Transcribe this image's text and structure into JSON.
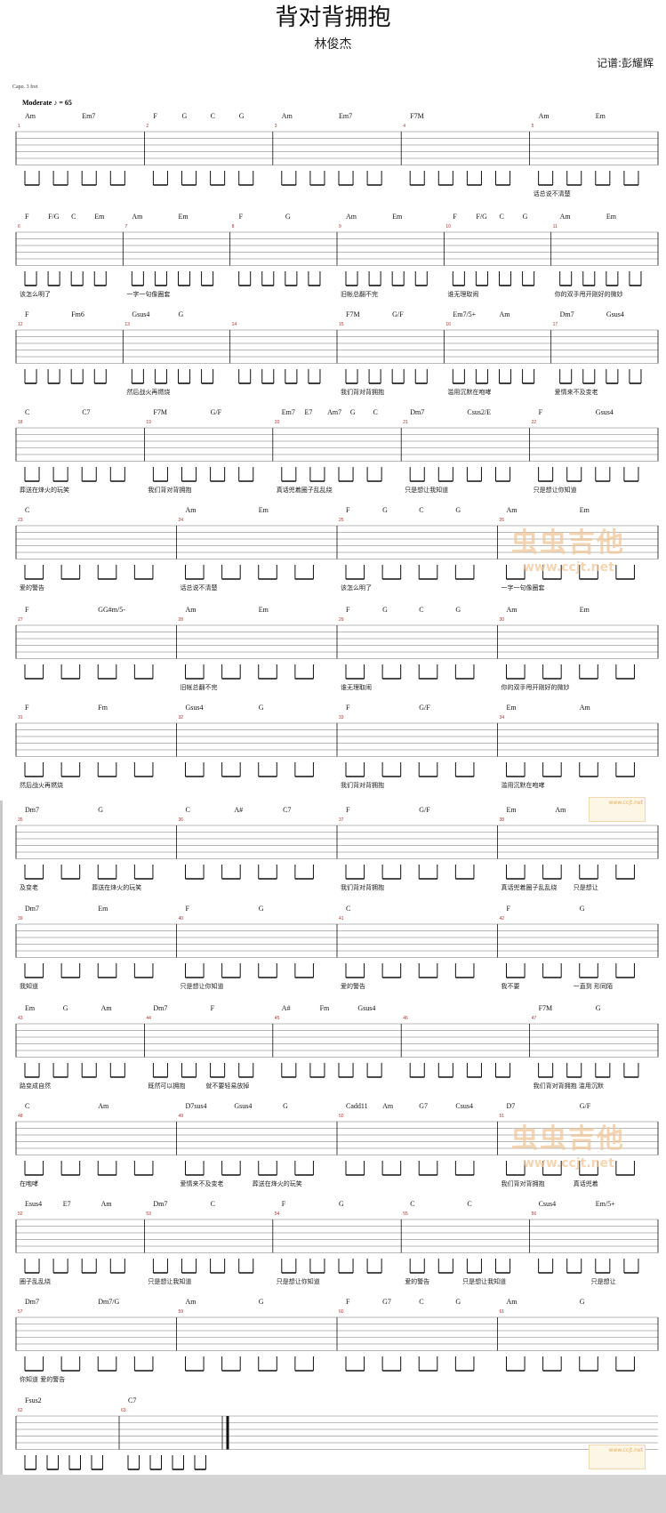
{
  "header": {
    "title": "背对背拥抱",
    "artist": "林俊杰",
    "arranger": "记谱:彭耀辉",
    "capo": "Capo. 3 fret",
    "tempo": "Moderate  ♪ = 65"
  },
  "watermark": {
    "site": "www.ccjt.net",
    "brand": "虫虫吉他",
    "color": "#f0c89a"
  },
  "rows": [
    {
      "measures": [
        {
          "n": 1,
          "chords": [
            "Am",
            "Em7"
          ]
        },
        {
          "n": 2,
          "chords": [
            "F",
            "G",
            "C",
            "G"
          ]
        },
        {
          "n": 3,
          "chords": [
            "Am",
            "Em7"
          ]
        },
        {
          "n": 4,
          "chords": [
            "F7M"
          ]
        },
        {
          "n": 5,
          "chords": [
            "Am",
            "Em"
          ]
        }
      ],
      "lyrics": [
        {
          "m": 4,
          "text": "话总说不清楚"
        }
      ]
    },
    {
      "measures": [
        {
          "n": 6,
          "chords": [
            "F",
            "F/G",
            "C",
            "Em"
          ]
        },
        {
          "n": 7,
          "chords": [
            "Am",
            "Em"
          ]
        },
        {
          "n": 8,
          "chords": [
            "F",
            "G"
          ]
        },
        {
          "n": 9,
          "chords": [
            "Am",
            "Em"
          ]
        },
        {
          "n": 10,
          "chords": [
            "F",
            "F/G",
            "C",
            "G"
          ]
        },
        {
          "n": 11,
          "chords": [
            "Am",
            "Em"
          ]
        }
      ],
      "lyrics": [
        {
          "m": 0,
          "text": "该怎么明了"
        },
        {
          "m": 1,
          "text": "一字一句像圈套"
        },
        {
          "m": 3,
          "text": "旧帐总翻不完"
        },
        {
          "m": 4,
          "text": "谁无理取闹"
        },
        {
          "m": 5,
          "text": "你的双手甩开刚好的微妙"
        }
      ]
    },
    {
      "measures": [
        {
          "n": 12,
          "chords": [
            "F",
            "Fm6"
          ]
        },
        {
          "n": 13,
          "chords": [
            "Gsus4",
            "G"
          ]
        },
        {
          "n": 14,
          "chords": []
        },
        {
          "n": 15,
          "chords": [
            "F7M",
            "G/F"
          ]
        },
        {
          "n": 16,
          "chords": [
            "Em7/5+",
            "Am"
          ]
        },
        {
          "n": 17,
          "chords": [
            "Dm7",
            "Gsus4"
          ]
        }
      ],
      "lyrics": [
        {
          "m": 1,
          "text": "然后战火再燃烧"
        },
        {
          "m": 3,
          "text": "我们背对背拥抱"
        },
        {
          "m": 4,
          "text": "滥用沉默在咆哮"
        },
        {
          "m": 5,
          "text": "爱情来不及变老"
        }
      ]
    },
    {
      "measures": [
        {
          "n": 18,
          "chords": [
            "C",
            "C7"
          ]
        },
        {
          "n": 19,
          "chords": [
            "F7M",
            "G/F"
          ]
        },
        {
          "n": 20,
          "chords": [
            "Em7",
            "E7",
            "Am7",
            "G",
            "C"
          ]
        },
        {
          "n": 21,
          "chords": [
            "Dm7",
            "Csus2/E"
          ]
        },
        {
          "n": 22,
          "chords": [
            "F",
            "Gsus4"
          ]
        }
      ],
      "lyrics": [
        {
          "m": 0,
          "text": "葬送在烽火的玩笑"
        },
        {
          "m": 1,
          "text": "我们背对背拥抱"
        },
        {
          "m": 2,
          "text": "真话兜着圈子乱乱绕"
        },
        {
          "m": 3,
          "text": "只是想让我知道"
        },
        {
          "m": 4,
          "text": "只是想让你知道"
        }
      ]
    },
    {
      "measures": [
        {
          "n": 23,
          "chords": [
            "C"
          ]
        },
        {
          "n": 24,
          "chords": [
            "Am",
            "Em"
          ]
        },
        {
          "n": 25,
          "chords": [
            "F",
            "G",
            "C",
            "G"
          ]
        },
        {
          "n": 26,
          "chords": [
            "Am",
            "Em"
          ]
        }
      ],
      "lyrics": [
        {
          "m": 0,
          "text": "爱的警告"
        },
        {
          "m": 1,
          "text": "话总说不清楚"
        },
        {
          "m": 2,
          "text": "该怎么明了"
        },
        {
          "m": 3,
          "text": "一字一句像圈套"
        }
      ]
    },
    {
      "measures": [
        {
          "n": 27,
          "chords": [
            "F",
            "GG#m/5-"
          ]
        },
        {
          "n": 28,
          "chords": [
            "Am",
            "Em"
          ]
        },
        {
          "n": 29,
          "chords": [
            "F",
            "G",
            "C",
            "G"
          ]
        },
        {
          "n": 30,
          "chords": [
            "Am",
            "Em"
          ]
        }
      ],
      "lyrics": [
        {
          "m": 1,
          "text": "旧帐总翻不完"
        },
        {
          "m": 2,
          "text": "谁无理取闹"
        },
        {
          "m": 3,
          "text": "你的双手甩开刚好的微妙"
        }
      ]
    },
    {
      "measures": [
        {
          "n": 31,
          "chords": [
            "F",
            "Fm"
          ]
        },
        {
          "n": 32,
          "chords": [
            "Gsus4",
            "G"
          ]
        },
        {
          "n": 33,
          "chords": [
            "F",
            "G/F"
          ]
        },
        {
          "n": 34,
          "chords": [
            "Em",
            "Am"
          ]
        }
      ],
      "lyrics": [
        {
          "m": 0,
          "text": "然后战火再燃烧"
        },
        {
          "m": 2,
          "text": "我们背对背拥抱"
        },
        {
          "m": 3,
          "text": "滥用沉默在咆哮"
        }
      ]
    },
    {
      "measures": [
        {
          "n": 35,
          "chords": [
            "Dm7",
            "G"
          ]
        },
        {
          "n": 36,
          "chords": [
            "C",
            "A#",
            "C7"
          ]
        },
        {
          "n": 37,
          "chords": [
            "F",
            "G/F"
          ]
        },
        {
          "n": 38,
          "chords": [
            "Em",
            "Am",
            "G"
          ]
        }
      ],
      "lyrics": [
        {
          "m": 0,
          "text": "及变老"
        },
        {
          "m": 0,
          "text": "葬送在烽火的玩笑",
          "late": true
        },
        {
          "m": 2,
          "text": "我们背对背拥抱"
        },
        {
          "m": 3,
          "text": "真话兜着圈子乱乱绕"
        },
        {
          "m": 3,
          "text": "只是想让",
          "late": true
        }
      ]
    },
    {
      "measures": [
        {
          "n": 39,
          "chords": [
            "Dm7",
            "Em"
          ]
        },
        {
          "n": 40,
          "chords": [
            "F",
            "G"
          ]
        },
        {
          "n": 41,
          "chords": [
            "C"
          ]
        },
        {
          "n": 42,
          "chords": [
            "F",
            "G"
          ]
        }
      ],
      "lyrics": [
        {
          "m": 0,
          "text": "我知道"
        },
        {
          "m": 1,
          "text": "只是想让你知道"
        },
        {
          "m": 2,
          "text": "爱的警告"
        },
        {
          "m": 3,
          "text": "我不要"
        },
        {
          "m": 3,
          "text": "一直到   形同陌",
          "late": true
        }
      ]
    },
    {
      "measures": [
        {
          "n": 43,
          "chords": [
            "Em",
            "G",
            "Am"
          ]
        },
        {
          "n": 44,
          "chords": [
            "Dm7",
            "F"
          ]
        },
        {
          "n": 45,
          "chords": [
            "A#",
            "Fm",
            "Gsus4"
          ]
        },
        {
          "n": 46,
          "chords": []
        },
        {
          "n": 47,
          "chords": [
            "F7M",
            "G"
          ]
        }
      ],
      "lyrics": [
        {
          "m": 0,
          "text": "路变成自然"
        },
        {
          "m": 1,
          "text": "既然可以拥抱"
        },
        {
          "m": 1,
          "text": "就不要轻易放掉",
          "late": true
        },
        {
          "m": 4,
          "text": "我们背对背拥抱   滥用沉默"
        }
      ]
    },
    {
      "measures": [
        {
          "n": 48,
          "chords": [
            "C",
            "Am"
          ]
        },
        {
          "n": 49,
          "chords": [
            "D7sus4",
            "Gsus4",
            "G"
          ]
        },
        {
          "n": 50,
          "chords": [
            "Cadd11",
            "Am",
            "G7",
            "Csus4"
          ]
        },
        {
          "n": 51,
          "chords": [
            "D7",
            "G/F"
          ]
        }
      ],
      "lyrics": [
        {
          "m": 0,
          "text": "在咆哮"
        },
        {
          "m": 1,
          "text": "爱情来不及变老"
        },
        {
          "m": 1,
          "text": "葬送在烽火的玩笑",
          "late": true
        },
        {
          "m": 3,
          "text": "我们背对背拥抱"
        },
        {
          "m": 3,
          "text": "真话兜着",
          "late": true
        }
      ]
    },
    {
      "measures": [
        {
          "n": 52,
          "chords": [
            "Esus4",
            "E7",
            "Am"
          ]
        },
        {
          "n": 53,
          "chords": [
            "Dm7",
            "C"
          ]
        },
        {
          "n": 54,
          "chords": [
            "F",
            "G"
          ]
        },
        {
          "n": 55,
          "chords": [
            "C",
            "C"
          ]
        },
        {
          "n": 56,
          "chords": [
            "Csus4",
            "Em/5+"
          ]
        }
      ],
      "lyrics": [
        {
          "m": 0,
          "text": "圈子乱乱绕"
        },
        {
          "m": 1,
          "text": "只是想让我知道"
        },
        {
          "m": 2,
          "text": "只是想让你知道"
        },
        {
          "m": 3,
          "text": "爱的警告"
        },
        {
          "m": 3,
          "text": "只是想让我知道",
          "late": true
        },
        {
          "m": 4,
          "text": "只是想让",
          "late": true
        }
      ]
    },
    {
      "measures": [
        {
          "n": 57,
          "chords": [
            "Dm7",
            "Dm7/G"
          ]
        },
        {
          "n": 59,
          "chords": [
            "Am",
            "G"
          ]
        },
        {
          "n": 60,
          "chords": [
            "F",
            "G7",
            "C",
            "G"
          ]
        },
        {
          "n": 61,
          "chords": [
            "Am",
            "G"
          ]
        }
      ],
      "lyrics": [
        {
          "m": 0,
          "text": "你知道   爱的警告"
        }
      ]
    },
    {
      "measures": [
        {
          "n": 62,
          "chords": [
            "Fsus2"
          ]
        },
        {
          "n": 63,
          "chords": [
            "C7"
          ]
        }
      ],
      "lyrics": [],
      "final": true
    }
  ]
}
